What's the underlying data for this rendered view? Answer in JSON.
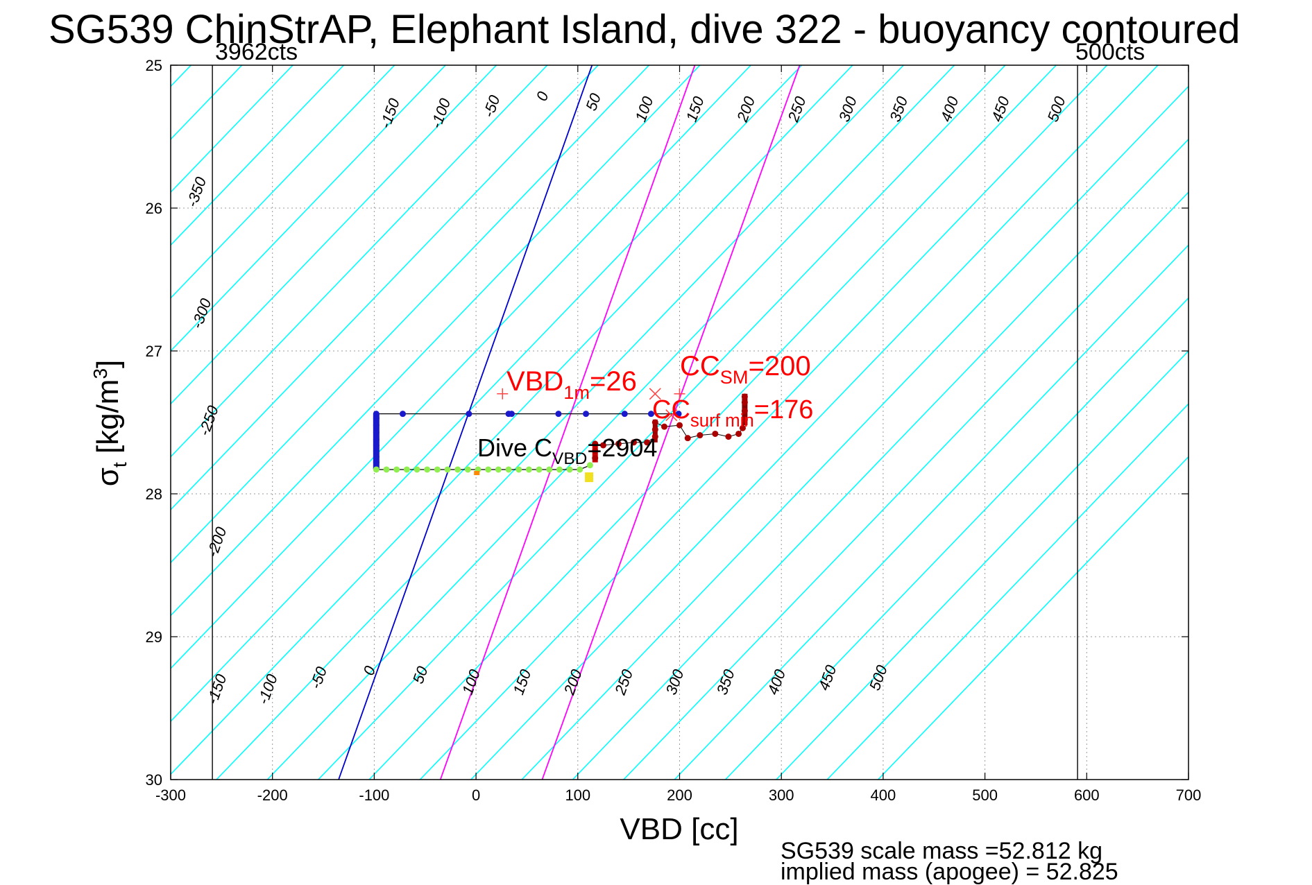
{
  "title": "SG539 ChinStrAP, Elephant Island, dive 322 - buoyancy contoured",
  "count_labels": {
    "left": "3962cts",
    "right": "500cts"
  },
  "annotations": {
    "vbd_1m": {
      "main": "VBD",
      "sub": "1m",
      "value": "=26"
    },
    "cc_sm": {
      "main": "CC",
      "sub": "SM",
      "value": "=200"
    },
    "cc_surf_min": {
      "main": "CC",
      "sub": "surf min",
      "value": "=176"
    },
    "dive_c_vbd": {
      "main": "Dive C",
      "sub": "VBD",
      "value": "=2904"
    },
    "scale_mass": "SG539 scale mass =52.812 kg",
    "implied_mass": "implied mass (apogee) = 52.825"
  },
  "colors": {
    "contour": "#00ffff",
    "zero_contour": "#0000cc",
    "magenta_contour": "#ff00ff",
    "purple_contour": "#aa33ff",
    "dive_points": "#1a1acc",
    "climb_points": "#90ee50",
    "surface_points": "#aa0000",
    "annotation": "#ff0000"
  },
  "chart_data": {
    "type": "scatter",
    "xlabel": "VBD [cc]",
    "ylabel": "σt [kg/m³]",
    "xlim": [
      -300,
      700
    ],
    "ylim": [
      25,
      30
    ],
    "y_reversed": true,
    "xticks": [
      "-300",
      "-200",
      "-100",
      "0",
      "100",
      "200",
      "300",
      "400",
      "500",
      "600",
      "700"
    ],
    "yticks": [
      "25",
      "26",
      "27",
      "28",
      "29",
      "30"
    ],
    "grid": true,
    "vlines": [
      -259,
      591
    ],
    "contour_labels_top": [
      {
        "text": "-350",
        "x": -270,
        "y": 25.9
      },
      {
        "text": "-300",
        "x": -265,
        "y": 26.75
      },
      {
        "text": "-250",
        "x": -258,
        "y": 27.5
      },
      {
        "text": "-200",
        "x": -250,
        "y": 28.35
      },
      {
        "text": "-150",
        "x": -80,
        "y": 25.35
      },
      {
        "text": "-100",
        "x": -30,
        "y": 25.35
      },
      {
        "text": "-50",
        "x": 20,
        "y": 25.3
      },
      {
        "text": "0",
        "x": 70,
        "y": 25.23
      },
      {
        "text": "50",
        "x": 120,
        "y": 25.27
      },
      {
        "text": "100",
        "x": 170,
        "y": 25.32
      },
      {
        "text": "150",
        "x": 220,
        "y": 25.32
      },
      {
        "text": "200",
        "x": 270,
        "y": 25.32
      },
      {
        "text": "250",
        "x": 320,
        "y": 25.32
      },
      {
        "text": "300",
        "x": 370,
        "y": 25.32
      },
      {
        "text": "350",
        "x": 420,
        "y": 25.32
      },
      {
        "text": "400",
        "x": 470,
        "y": 25.32
      },
      {
        "text": "450",
        "x": 520,
        "y": 25.32
      },
      {
        "text": "500",
        "x": 575,
        "y": 25.32
      }
    ],
    "contour_labels_bottom": [
      {
        "text": "-150",
        "x": -250,
        "y": 29.38
      },
      {
        "text": "-100",
        "x": -200,
        "y": 29.38
      },
      {
        "text": "-50",
        "x": -150,
        "y": 29.3
      },
      {
        "text": "0",
        "x": -100,
        "y": 29.25
      },
      {
        "text": "50",
        "x": -50,
        "y": 29.28
      },
      {
        "text": "100",
        "x": 0,
        "y": 29.33
      },
      {
        "text": "150",
        "x": 50,
        "y": 29.33
      },
      {
        "text": "200",
        "x": 100,
        "y": 29.33
      },
      {
        "text": "250",
        "x": 150,
        "y": 29.33
      },
      {
        "text": "300",
        "x": 200,
        "y": 29.33
      },
      {
        "text": "350",
        "x": 250,
        "y": 29.33
      },
      {
        "text": "400",
        "x": 300,
        "y": 29.33
      },
      {
        "text": "450",
        "x": 350,
        "y": 29.3
      },
      {
        "text": "500",
        "x": 400,
        "y": 29.3
      }
    ],
    "series": [
      {
        "name": "dive",
        "marker": "dot",
        "points": [
          [
            -98,
            27.44
          ],
          [
            -72,
            27.44
          ],
          [
            -7,
            27.44
          ],
          [
            32,
            27.44
          ],
          [
            35,
            27.44
          ],
          [
            81,
            27.44
          ],
          [
            108,
            27.44
          ],
          [
            146,
            27.44
          ],
          [
            172,
            27.44
          ],
          [
            199,
            27.44
          ],
          [
            -98,
            27.47
          ],
          [
            -98,
            27.52
          ],
          [
            -98,
            27.57
          ],
          [
            -98,
            27.62
          ],
          [
            -98,
            27.66
          ],
          [
            -98,
            27.7
          ],
          [
            -98,
            27.74
          ],
          [
            -98,
            27.78
          ],
          [
            -98,
            27.82
          ]
        ]
      },
      {
        "name": "climb",
        "marker": "dot",
        "points": [
          [
            -98,
            27.83
          ],
          [
            -88,
            27.83
          ],
          [
            -78,
            27.83
          ],
          [
            -68,
            27.83
          ],
          [
            -58,
            27.83
          ],
          [
            -48,
            27.83
          ],
          [
            -38,
            27.83
          ],
          [
            -28,
            27.83
          ],
          [
            -18,
            27.83
          ],
          [
            -8,
            27.83
          ],
          [
            2,
            27.83
          ],
          [
            12,
            27.83
          ],
          [
            22,
            27.83
          ],
          [
            32,
            27.83
          ],
          [
            42,
            27.83
          ],
          [
            52,
            27.83
          ],
          [
            62,
            27.83
          ],
          [
            72,
            27.83
          ],
          [
            82,
            27.83
          ],
          [
            92,
            27.83
          ],
          [
            102,
            27.83
          ],
          [
            112,
            27.8
          ]
        ]
      },
      {
        "name": "surface",
        "marker": "dot",
        "points": [
          [
            117,
            27.65
          ],
          [
            117,
            27.7
          ],
          [
            117,
            27.75
          ],
          [
            125,
            27.66
          ],
          [
            140,
            27.65
          ],
          [
            155,
            27.64
          ],
          [
            168,
            27.64
          ],
          [
            176,
            27.6
          ],
          [
            176,
            27.55
          ],
          [
            176,
            27.5
          ],
          [
            185,
            27.53
          ],
          [
            200,
            27.52
          ],
          [
            208,
            27.61
          ],
          [
            220,
            27.59
          ],
          [
            235,
            27.58
          ],
          [
            248,
            27.6
          ],
          [
            258,
            27.58
          ],
          [
            262,
            27.54
          ],
          [
            264,
            27.48
          ],
          [
            264,
            27.42
          ],
          [
            264,
            27.36
          ],
          [
            264,
            27.32
          ]
        ]
      }
    ],
    "markers": [
      {
        "label": "VBD_1m",
        "symbol": "+",
        "x": 26,
        "y": 27.3
      },
      {
        "label": "CC_SM",
        "symbol": "+",
        "x": 200,
        "y": 27.3
      },
      {
        "label": "x1",
        "symbol": "x",
        "x": 176,
        "y": 27.3
      },
      {
        "label": "x2",
        "symbol": "x",
        "x": 192,
        "y": 27.45
      }
    ]
  }
}
